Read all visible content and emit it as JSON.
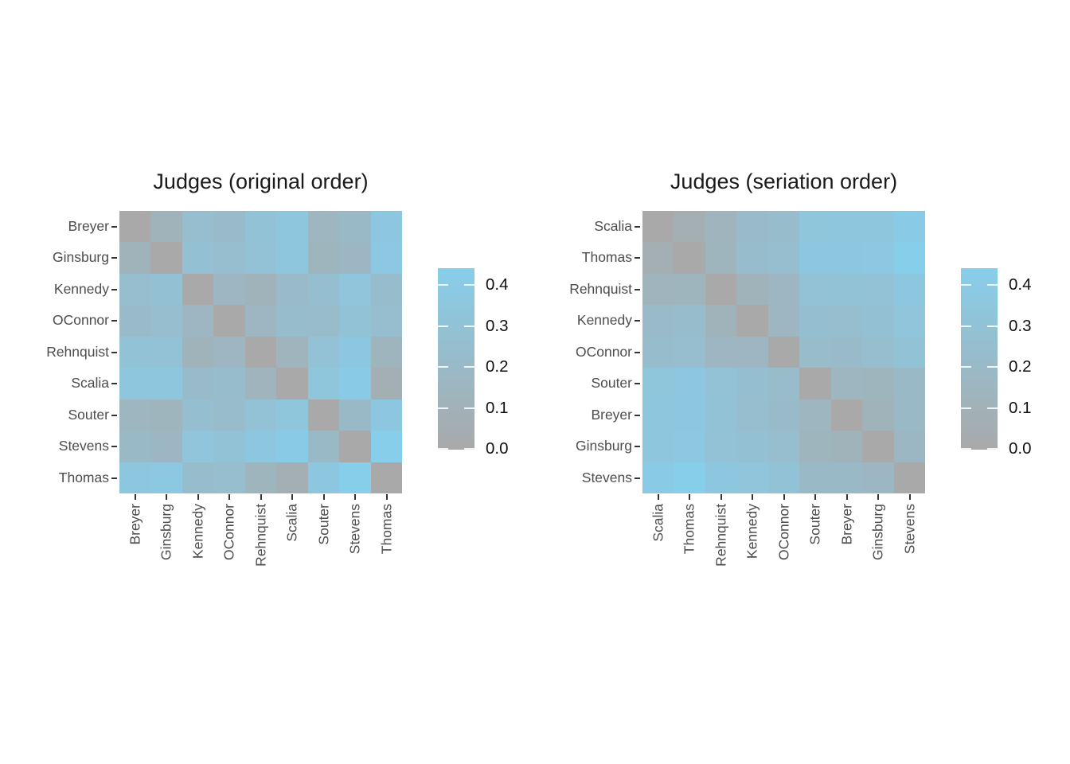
{
  "figure": {
    "background": "#ffffff",
    "title_color": "#1a1a1a",
    "axis_text_color": "#4d4d4d"
  },
  "chart_data": {
    "type": "heatmap",
    "description": "Pairwise dissimilarity (disagreement) between Supreme Court judges, shown twice: original alphabetical order and seriation order",
    "labels_base_order": [
      "Breyer",
      "Ginsburg",
      "Kennedy",
      "OConnor",
      "Rehnquist",
      "Scalia",
      "Souter",
      "Stevens",
      "Thomas"
    ],
    "dissimilarity_matrix": [
      [
        0.0,
        0.12,
        0.25,
        0.21,
        0.3,
        0.35,
        0.15,
        0.19,
        0.36
      ],
      [
        0.12,
        0.0,
        0.28,
        0.25,
        0.29,
        0.35,
        0.14,
        0.17,
        0.37
      ],
      [
        0.25,
        0.28,
        0.0,
        0.16,
        0.12,
        0.21,
        0.26,
        0.33,
        0.23
      ],
      [
        0.21,
        0.25,
        0.16,
        0.0,
        0.16,
        0.23,
        0.22,
        0.3,
        0.25
      ],
      [
        0.3,
        0.29,
        0.12,
        0.16,
        0.0,
        0.13,
        0.29,
        0.36,
        0.14
      ],
      [
        0.35,
        0.35,
        0.21,
        0.23,
        0.13,
        0.0,
        0.34,
        0.41,
        0.07
      ],
      [
        0.15,
        0.14,
        0.26,
        0.22,
        0.29,
        0.34,
        0.0,
        0.19,
        0.36
      ],
      [
        0.19,
        0.17,
        0.33,
        0.3,
        0.36,
        0.41,
        0.19,
        0.0,
        0.44
      ],
      [
        0.36,
        0.37,
        0.23,
        0.25,
        0.14,
        0.07,
        0.36,
        0.44,
        0.0
      ]
    ],
    "panels": [
      {
        "title": "Judges (original order)",
        "order": [
          "Breyer",
          "Ginsburg",
          "Kennedy",
          "OConnor",
          "Rehnquist",
          "Scalia",
          "Souter",
          "Stevens",
          "Thomas"
        ]
      },
      {
        "title": "Judges (seriation order)",
        "order": [
          "Scalia",
          "Thomas",
          "Rehnquist",
          "Kennedy",
          "OConnor",
          "Souter",
          "Breyer",
          "Ginsburg",
          "Stevens"
        ]
      }
    ],
    "colorbar": {
      "min": 0.0,
      "max": 0.44,
      "tick_values": [
        0.0,
        0.1,
        0.2,
        0.3,
        0.4
      ],
      "tick_labels": [
        "0.0",
        "0.1",
        "0.2",
        "0.3",
        "0.4"
      ],
      "low_color": "#A9A9A9",
      "high_color": "#87CEEB",
      "position": "right"
    },
    "grid": false,
    "cell_border": "none"
  }
}
